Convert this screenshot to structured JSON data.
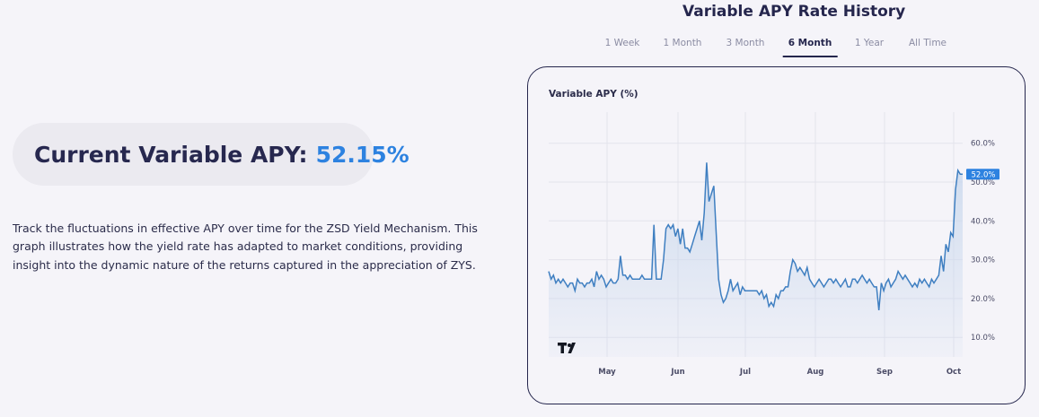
{
  "current_apy": {
    "label": "Current Variable APY:",
    "value": "52.15%"
  },
  "description": "Track the fluctuations in effective APY over time for the ZSD Yield Mechanism. This graph illustrates how the yield rate has adapted to market conditions, providing insight into the dynamic nature of the returns captured in the appreciation of ZYS.",
  "chart_title": "Variable APY Rate History",
  "tabs": [
    {
      "label": "1 Week",
      "active": false
    },
    {
      "label": "1 Month",
      "active": false
    },
    {
      "label": "3 Month",
      "active": false
    },
    {
      "label": "6 Month",
      "active": true
    },
    {
      "label": "1 Year",
      "active": false
    },
    {
      "label": "All Time",
      "active": false
    }
  ],
  "chart_label": "Variable APY (%)",
  "logo": {
    "icon": "tradingview-logo-icon",
    "text": "TV"
  },
  "colors": {
    "accent": "#2d82e0",
    "line": "#3f7fc1",
    "fill": "#c9d8ed",
    "title": "#25264d",
    "pill_bg": "#ebeaf0"
  },
  "chart_data": {
    "type": "area",
    "title": "",
    "ylabel": "Variable APY (%)",
    "xlabel": "",
    "x_ticks": [
      "May",
      "Jun",
      "Jul",
      "Aug",
      "Sep",
      "Oct"
    ],
    "y_ticks": [
      "10.0%",
      "20.0%",
      "30.0%",
      "40.0%",
      "50.0%",
      "60.0%"
    ],
    "ylim": [
      5,
      68
    ],
    "grid": true,
    "last_value_label": "52.0%",
    "series": [
      {
        "values": [
          27,
          25,
          26,
          24,
          25,
          24,
          25,
          24,
          23,
          24,
          24,
          22,
          25,
          24,
          24,
          23,
          24,
          24,
          25,
          23,
          27,
          25,
          26,
          25,
          23,
          24,
          25,
          24,
          24,
          25,
          31,
          26,
          26,
          25,
          26,
          25,
          25,
          25,
          25,
          26,
          25,
          25,
          25,
          25,
          39,
          25,
          25,
          25,
          30,
          38,
          39,
          38,
          39,
          36,
          38,
          34,
          38,
          33,
          33,
          32,
          34,
          36,
          38,
          40,
          35,
          42,
          55,
          45,
          47,
          49,
          37,
          25,
          21,
          19,
          20,
          22,
          25,
          22,
          23,
          24,
          21,
          23,
          22,
          22,
          22,
          22,
          22,
          22,
          21,
          22,
          20,
          21,
          18,
          19,
          18,
          21,
          20,
          22,
          22,
          23,
          23,
          27,
          30,
          29,
          27,
          28,
          27,
          26,
          28,
          25,
          24,
          23,
          24,
          25,
          24,
          23,
          24,
          25,
          25,
          24,
          25,
          24,
          23,
          24,
          25,
          23,
          23,
          25,
          25,
          24,
          25,
          26,
          25,
          24,
          25,
          24,
          23,
          23,
          17,
          24,
          22,
          24,
          25,
          23,
          24,
          25,
          27,
          26,
          25,
          26,
          25,
          24,
          23,
          24,
          23,
          25,
          24,
          25,
          24,
          23,
          25,
          24,
          25,
          26,
          31,
          27,
          34,
          32,
          37,
          36,
          48,
          53,
          52,
          52
        ]
      }
    ]
  }
}
